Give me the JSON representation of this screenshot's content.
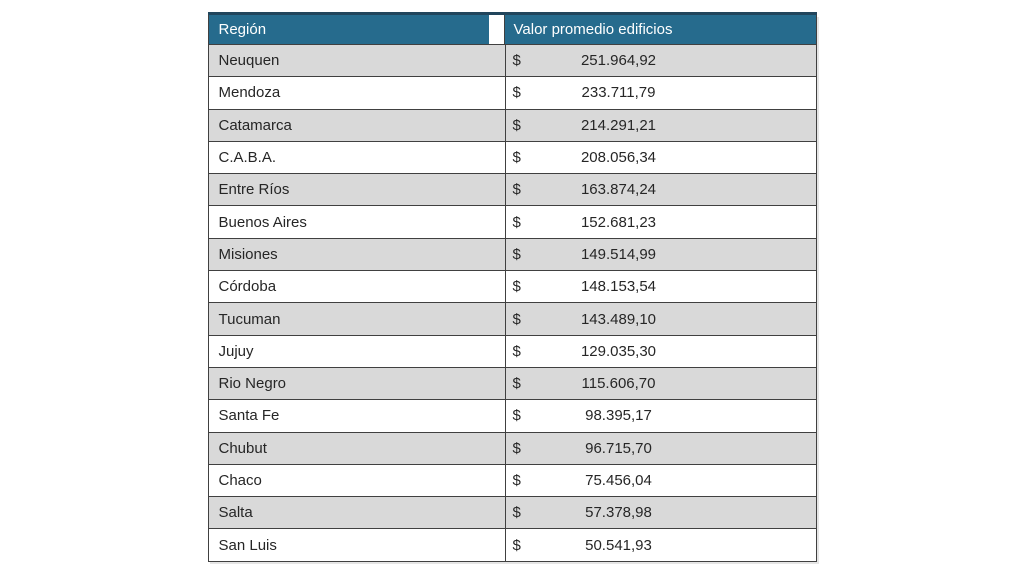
{
  "table": {
    "headers": {
      "region": "Región",
      "value": "Valor promedio edificios"
    },
    "currency_symbol": "$",
    "rows": [
      {
        "region": "Neuquen",
        "value": "251.964,92"
      },
      {
        "region": "Mendoza",
        "value": "233.711,79"
      },
      {
        "region": "Catamarca",
        "value": "214.291,21"
      },
      {
        "region": "C.A.B.A.",
        "value": "208.056,34"
      },
      {
        "region": "Entre Ríos",
        "value": "163.874,24"
      },
      {
        "region": "Buenos Aires",
        "value": "152.681,23"
      },
      {
        "region": "Misiones",
        "value": "149.514,99"
      },
      {
        "region": "Córdoba",
        "value": "148.153,54"
      },
      {
        "region": "Tucuman",
        "value": "143.489,10"
      },
      {
        "region": "Jujuy",
        "value": "129.035,30"
      },
      {
        "region": "Rio Negro",
        "value": "115.606,70"
      },
      {
        "region": "Santa Fe",
        "value": "98.395,17"
      },
      {
        "region": "Chubut",
        "value": "96.715,70"
      },
      {
        "region": "Chaco",
        "value": "75.456,04"
      },
      {
        "region": "Salta",
        "value": "57.378,98"
      },
      {
        "region": "San Luis",
        "value": "50.541,93"
      }
    ]
  },
  "colors": {
    "header_bg": "#266B8D",
    "header_text": "#FFFFFF",
    "top_border": "#21455C",
    "row_alt_bg": "#D9D9D9",
    "row_bg": "#FFFFFF",
    "grid_border": "#404040",
    "body_text": "#262626",
    "page_bg": "#FFFFFF"
  },
  "chart_data": {
    "type": "table",
    "title": "",
    "columns": [
      "Región",
      "Valor promedio edificios"
    ],
    "categories": [
      "Neuquen",
      "Mendoza",
      "Catamarca",
      "C.A.B.A.",
      "Entre Ríos",
      "Buenos Aires",
      "Misiones",
      "Córdoba",
      "Tucuman",
      "Jujuy",
      "Rio Negro",
      "Santa Fe",
      "Chubut",
      "Chaco",
      "Salta",
      "San Luis"
    ],
    "values": [
      251964.92,
      233711.79,
      214291.21,
      208056.34,
      163874.24,
      152681.23,
      149514.99,
      148153.54,
      143489.1,
      129035.3,
      115606.7,
      98395.17,
      96715.7,
      75456.04,
      57378.98,
      50541.93
    ],
    "currency": "$",
    "number_format": "es-AR (thousands '.', decimal ',')",
    "sort": "descending by value"
  }
}
